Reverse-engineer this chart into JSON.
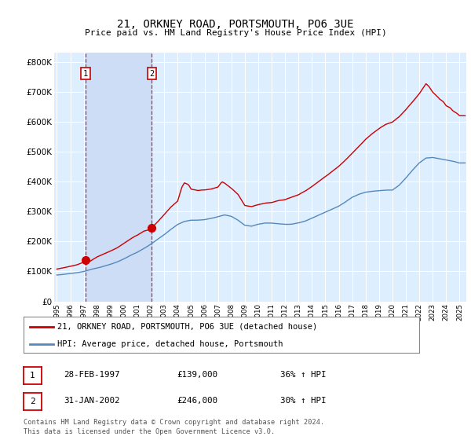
{
  "title": "21, ORKNEY ROAD, PORTSMOUTH, PO6 3UE",
  "subtitle": "Price paid vs. HM Land Registry's House Price Index (HPI)",
  "legend_line1": "21, ORKNEY ROAD, PORTSMOUTH, PO6 3UE (detached house)",
  "legend_line2": "HPI: Average price, detached house, Portsmouth",
  "footnote1": "Contains HM Land Registry data © Crown copyright and database right 2024.",
  "footnote2": "This data is licensed under the Open Government Licence v3.0.",
  "sale1_date": "28-FEB-1997",
  "sale1_price": "£139,000",
  "sale1_hpi": "36% ↑ HPI",
  "sale2_date": "31-JAN-2002",
  "sale2_price": "£246,000",
  "sale2_hpi": "30% ↑ HPI",
  "sale1_year": 1997.15,
  "sale1_value": 139000,
  "sale2_year": 2002.08,
  "sale2_value": 246000,
  "red_color": "#cc0000",
  "blue_color": "#5588bb",
  "shade_color": "#ccddf5",
  "background_plot": "#ddeeff",
  "background_fig": "#ffffff",
  "grid_color": "#ffffff",
  "ylim": [
    0,
    830000
  ],
  "xlim_start": 1994.8,
  "xlim_end": 2025.5,
  "yticks": [
    0,
    100000,
    200000,
    300000,
    400000,
    500000,
    600000,
    700000,
    800000
  ],
  "xticks": [
    1995,
    1996,
    1997,
    1998,
    1999,
    2000,
    2001,
    2002,
    2003,
    2004,
    2005,
    2006,
    2007,
    2008,
    2009,
    2010,
    2011,
    2012,
    2013,
    2014,
    2015,
    2016,
    2017,
    2018,
    2019,
    2020,
    2021,
    2022,
    2023,
    2024,
    2025
  ]
}
